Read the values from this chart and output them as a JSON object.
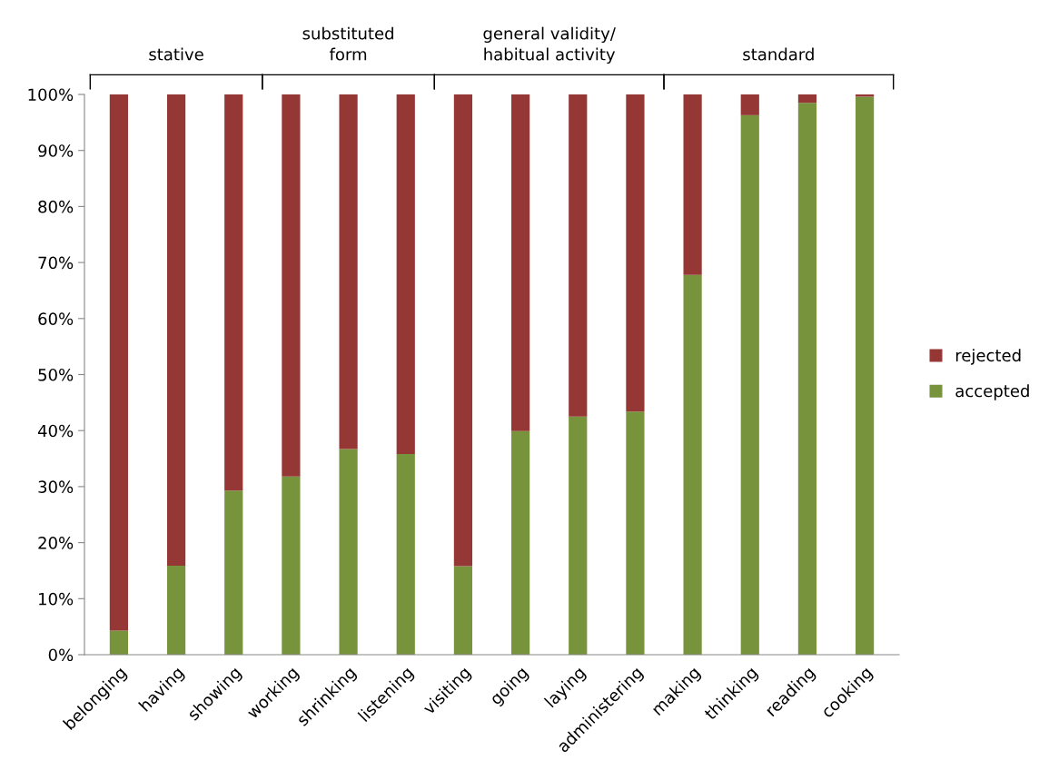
{
  "chart_data": {
    "type": "bar",
    "stacked": true,
    "categories": [
      "belonging",
      "having",
      "showing",
      "working",
      "shrinking",
      "listening",
      "visiting",
      "going",
      "laying",
      "administering",
      "making",
      "thinking",
      "reading",
      "cooking"
    ],
    "series": [
      {
        "name": "accepted",
        "color": "#77933c",
        "values": [
          4.3,
          15.9,
          29.3,
          31.8,
          36.7,
          35.8,
          15.8,
          39.9,
          42.5,
          43.4,
          67.8,
          96.3,
          98.5,
          99.6
        ]
      },
      {
        "name": "rejected",
        "color": "#953735",
        "values": [
          95.7,
          84.1,
          70.7,
          68.2,
          63.3,
          64.2,
          84.2,
          60.1,
          57.5,
          56.6,
          32.2,
          3.7,
          1.5,
          0.4
        ]
      }
    ],
    "ylim": [
      0,
      100
    ],
    "yticks": [
      {
        "value": 0,
        "label": "0%"
      },
      {
        "value": 10,
        "label": "10%"
      },
      {
        "value": 20,
        "label": "20%"
      },
      {
        "value": 30,
        "label": "30%"
      },
      {
        "value": 40,
        "label": "40%"
      },
      {
        "value": 50,
        "label": "50%"
      },
      {
        "value": 60,
        "label": "60%"
      },
      {
        "value": 70,
        "label": "70%"
      },
      {
        "value": 80,
        "label": "80%"
      },
      {
        "value": 90,
        "label": "90%"
      },
      {
        "value": 100,
        "label": "100%"
      }
    ],
    "annotations": [
      "stative",
      "substituted\nform",
      "general validity/\nhabitual activity",
      "standard"
    ],
    "legend": "right",
    "grid": false
  }
}
